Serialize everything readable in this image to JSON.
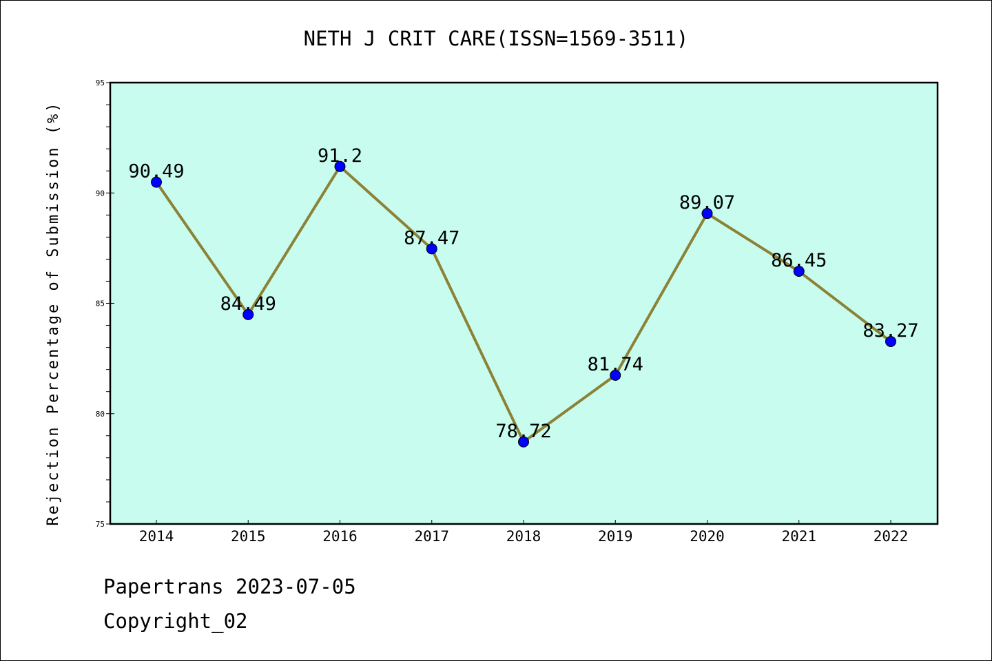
{
  "footer": {
    "line1": "Papertrans 2023-07-05",
    "line2": "Copyright_02"
  },
  "chart_data": {
    "type": "line",
    "title": "NETH J CRIT CARE(ISSN=1569-3511)",
    "xlabel": "",
    "ylabel": "Rejection Percentage of Submission (%)",
    "categories": [
      "2014",
      "2015",
      "2016",
      "2017",
      "2018",
      "2019",
      "2020",
      "2021",
      "2022"
    ],
    "series": [
      {
        "values": [
          90.49,
          84.49,
          91.2,
          87.47,
          78.72,
          81.74,
          89.07,
          86.45,
          83.27
        ],
        "labels": [
          "90.49",
          "84.49",
          "91.2",
          "87.47",
          "78.72",
          "81.74",
          "89.07",
          "86.45",
          "83.27"
        ]
      }
    ],
    "ylim": [
      75,
      95
    ],
    "yticks": [
      "75",
      "80",
      "85",
      "90",
      "95"
    ],
    "grid": false,
    "legend": "none",
    "colors": {
      "plot_background": "#c8fcee",
      "line": "#8b8236",
      "marker": "#0000ff",
      "axes": "#000000"
    }
  }
}
